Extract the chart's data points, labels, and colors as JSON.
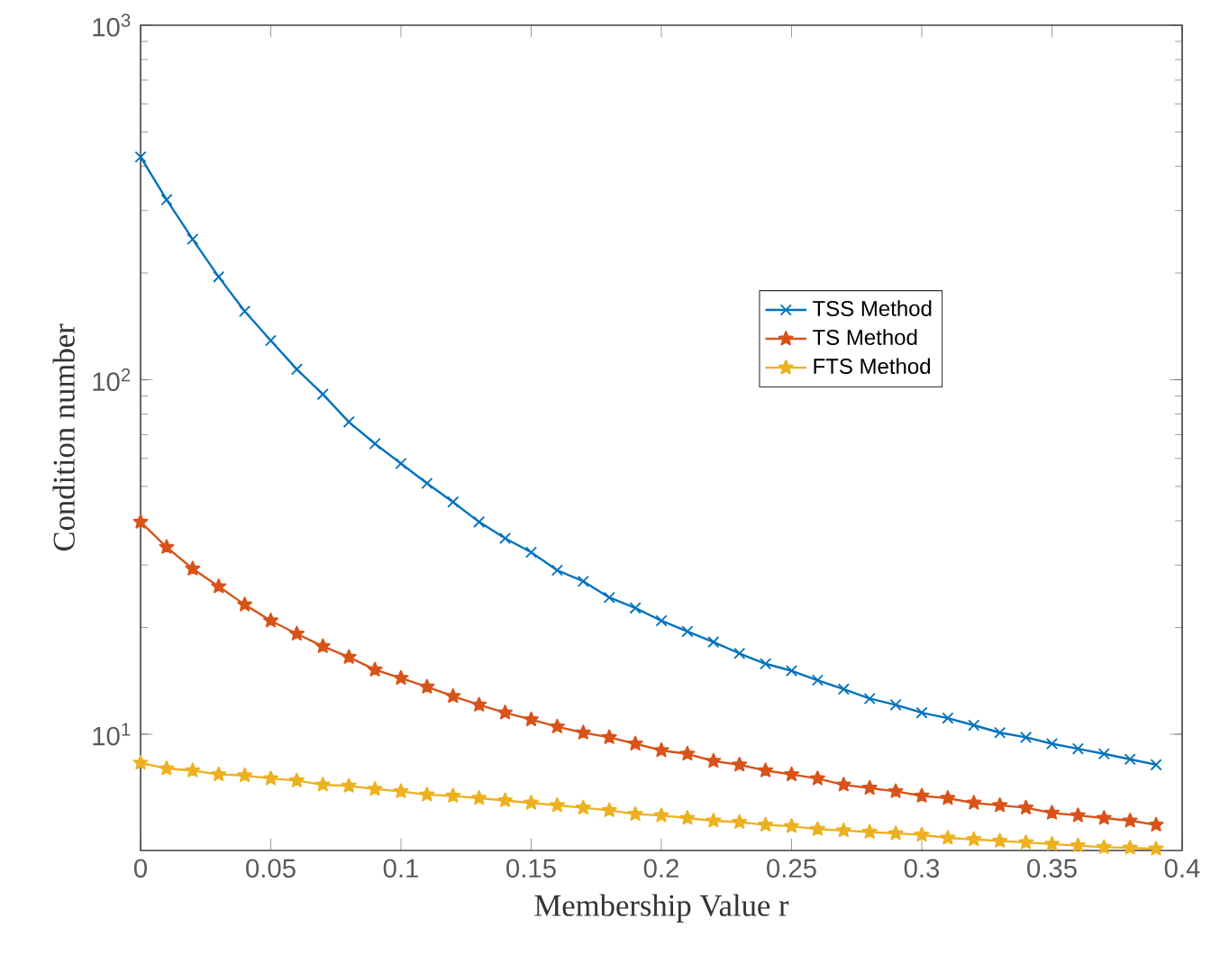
{
  "chart_data": {
    "type": "line",
    "xlabel": "Membership Value r",
    "ylabel": "Condition number",
    "log": "y",
    "xlim": [
      0,
      0.4
    ],
    "ylim": [
      4.7,
      1000
    ],
    "xticks": [
      0,
      0.05,
      0.1,
      0.15,
      0.2,
      0.25,
      0.3,
      0.35,
      0.4
    ],
    "yticks": [
      {
        "value": 10,
        "label": "10$^{1}$"
      },
      {
        "value": 100,
        "label": "10$^{2}$"
      },
      {
        "value": 1000,
        "label": "10$^{3}$"
      }
    ],
    "x": [
      0,
      0.01,
      0.02,
      0.03,
      0.04,
      0.05,
      0.06,
      0.07,
      0.08,
      0.09,
      0.1,
      0.11,
      0.12,
      0.13,
      0.14,
      0.15,
      0.16,
      0.17,
      0.18,
      0.19,
      0.2,
      0.21,
      0.22,
      0.23,
      0.24,
      0.25,
      0.26,
      0.27,
      0.28,
      0.29,
      0.3,
      0.31,
      0.32,
      0.33,
      0.34,
      0.35,
      0.36,
      0.37,
      0.38,
      0.39
    ],
    "legend": "right",
    "grid": false,
    "line_style": "solid",
    "series": [
      {
        "name": "TSS Method",
        "color": "#0072bd",
        "marker": "cross",
        "values": [
          425,
          322,
          249,
          195,
          156,
          129,
          107,
          91,
          76,
          66,
          58,
          51,
          45.2,
          39.7,
          35.7,
          32.6,
          29,
          27,
          24.3,
          22.7,
          20.9,
          19.5,
          18.2,
          16.9,
          15.8,
          15.1,
          14.2,
          13.4,
          12.6,
          12.1,
          11.5,
          11.1,
          10.6,
          10.1,
          9.8,
          9.4,
          9.1,
          8.8,
          8.5,
          8.2
        ]
      },
      {
        "name": "TS Method",
        "color": "#d95319",
        "marker": "star",
        "values": [
          39.7,
          33.7,
          29.3,
          26.1,
          23.2,
          20.9,
          19.2,
          17.7,
          16.5,
          15.2,
          14.4,
          13.6,
          12.8,
          12.1,
          11.5,
          11.0,
          10.5,
          10.1,
          9.8,
          9.4,
          9.0,
          8.8,
          8.4,
          8.2,
          7.9,
          7.7,
          7.5,
          7.2,
          7.05,
          6.9,
          6.7,
          6.6,
          6.4,
          6.3,
          6.2,
          6.0,
          5.9,
          5.8,
          5.7,
          5.55
        ]
      },
      {
        "name": "FTS Method",
        "color": "#edb120",
        "marker": "star",
        "values": [
          8.3,
          8.0,
          7.9,
          7.7,
          7.65,
          7.5,
          7.4,
          7.2,
          7.15,
          7.0,
          6.9,
          6.75,
          6.7,
          6.6,
          6.5,
          6.4,
          6.3,
          6.2,
          6.1,
          5.95,
          5.9,
          5.8,
          5.7,
          5.65,
          5.55,
          5.5,
          5.4,
          5.35,
          5.3,
          5.25,
          5.2,
          5.1,
          5.05,
          5.0,
          4.95,
          4.9,
          4.85,
          4.8,
          4.78,
          4.75
        ]
      }
    ]
  }
}
